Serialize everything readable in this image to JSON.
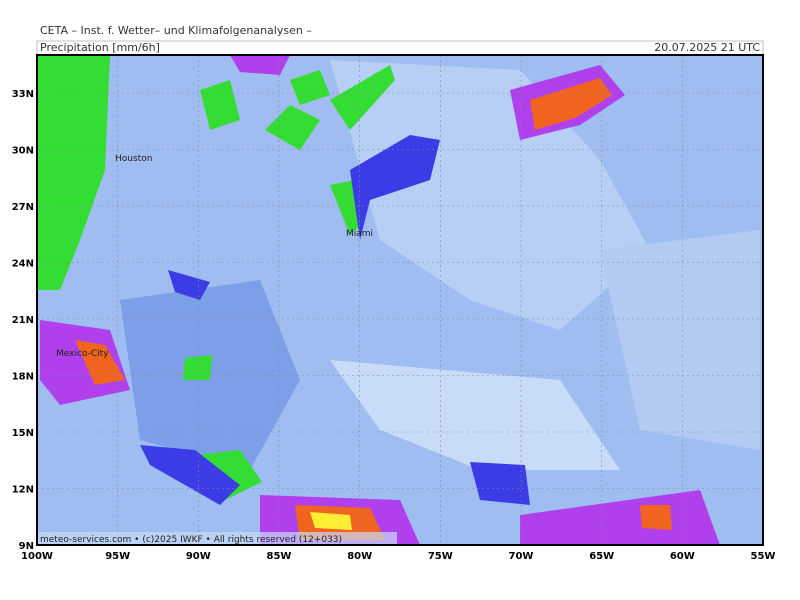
{
  "header": {
    "source": "CETA – Inst. f. Wetter– und Klimafolgenanalysen –",
    "parameter": "Precipitation [mm/6h]",
    "valid_time": "20.07.2025 21 UTC"
  },
  "map": {
    "latitude_labels": [
      "9N",
      "12N",
      "15N",
      "18N",
      "21N",
      "24N",
      "27N",
      "30N",
      "33N"
    ],
    "longitude_labels": [
      "100W",
      "95W",
      "90W",
      "85W",
      "80W",
      "75W",
      "70W",
      "65W",
      "60W",
      "55W"
    ],
    "cities": [
      "Houston",
      "Miami",
      "Mexico-City"
    ]
  },
  "footer": {
    "credit": "meteo-services.com • (c)2025 IWKF • All rights reserved (12+033)"
  }
}
